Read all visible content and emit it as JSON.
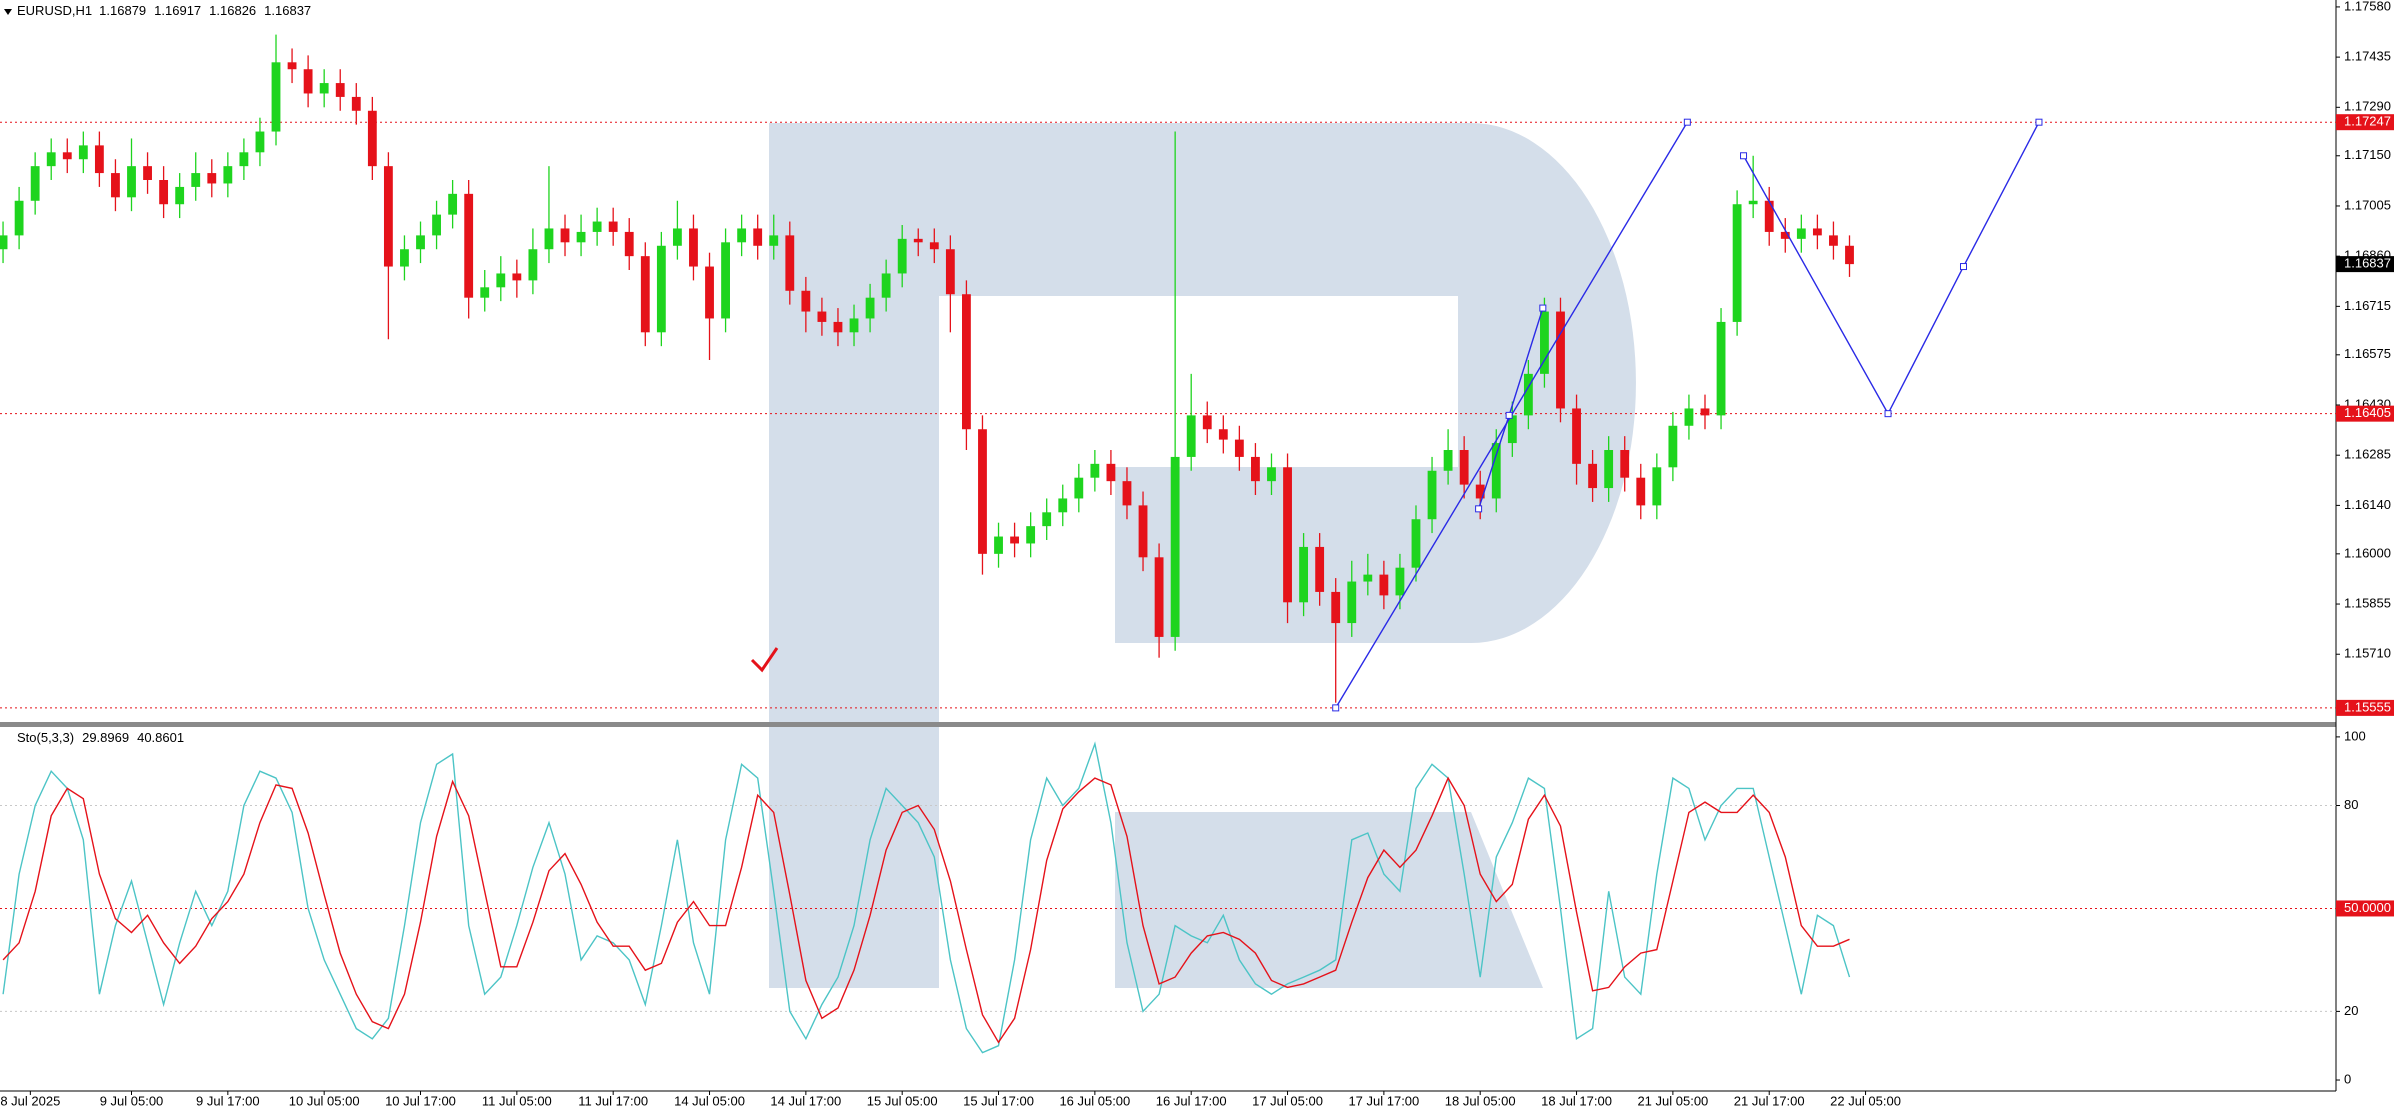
{
  "chart_data": [
    {
      "type": "candlestick",
      "title": "EURUSD,H1",
      "readout": [
        1.16879,
        1.16917,
        1.16826,
        1.16837
      ],
      "xlim": [
        -0.19,
        145.3
      ],
      "ylim": [
        1.1552,
        1.176
      ],
      "yticks": [
        {
          "value": 1.1758,
          "label": "1.17580"
        },
        {
          "value": 1.17435,
          "label": "1.17435"
        },
        {
          "value": 1.1729,
          "label": "1.17290"
        },
        {
          "value": 1.1715,
          "label": "1.17150"
        },
        {
          "value": 1.17005,
          "label": "1.17005"
        },
        {
          "value": 1.1686,
          "label": "1.16860"
        },
        {
          "value": 1.16715,
          "label": "1.16715"
        },
        {
          "value": 1.16575,
          "label": "1.16575"
        },
        {
          "value": 1.1643,
          "label": "1.16430"
        },
        {
          "value": 1.16285,
          "label": "1.16285"
        },
        {
          "value": 1.1614,
          "label": "1.16140"
        },
        {
          "value": 1.16,
          "label": "1.16000"
        },
        {
          "value": 1.15855,
          "label": "1.15855"
        },
        {
          "value": 1.1571,
          "label": "1.15710"
        }
      ],
      "up_color": "#1ed41e",
      "down_color": "#e5121a",
      "open": [
        1.1688,
        1.1692,
        1.1702,
        1.1712,
        1.1716,
        1.1714,
        1.1718,
        1.171,
        1.1703,
        1.1712,
        1.1708,
        1.1701,
        1.1706,
        1.171,
        1.1707,
        1.1712,
        1.1716,
        1.1722,
        1.1742,
        1.174,
        1.1733,
        1.1736,
        1.1732,
        1.1728,
        1.1712,
        1.1683,
        1.1688,
        1.1692,
        1.1698,
        1.1704,
        1.1674,
        1.1677,
        1.1681,
        1.1679,
        1.1688,
        1.1694,
        1.169,
        1.1693,
        1.1696,
        1.1693,
        1.1686,
        1.1664,
        1.1689,
        1.1694,
        1.1683,
        1.1668,
        1.169,
        1.1694,
        1.1689,
        1.1692,
        1.1676,
        1.167,
        1.1667,
        1.1664,
        1.1668,
        1.1674,
        1.1681,
        1.1691,
        1.169,
        1.1688,
        1.1675,
        1.1636,
        1.16,
        1.1605,
        1.1603,
        1.1608,
        1.1612,
        1.1616,
        1.1622,
        1.1626,
        1.1621,
        1.1614,
        1.1599,
        1.1576,
        1.1628,
        1.164,
        1.1636,
        1.1633,
        1.1628,
        1.1621,
        1.1625,
        1.1586,
        1.1602,
        1.1589,
        1.158,
        1.1592,
        1.1594,
        1.1588,
        1.1596,
        1.161,
        1.1624,
        1.163,
        1.162,
        1.1616,
        1.1632,
        1.164,
        1.1652,
        1.167,
        1.1642,
        1.1626,
        1.1619,
        1.163,
        1.1622,
        1.1614,
        1.1625,
        1.1637,
        1.1642,
        1.164,
        1.1667,
        1.1701,
        1.1702,
        1.1693,
        1.1691,
        1.1694,
        1.1692,
        1.1689
      ],
      "high": [
        1.1696,
        1.1706,
        1.1716,
        1.172,
        1.172,
        1.1722,
        1.1722,
        1.1714,
        1.172,
        1.1716,
        1.1712,
        1.171,
        1.1716,
        1.1714,
        1.1716,
        1.172,
        1.1726,
        1.175,
        1.1746,
        1.1744,
        1.174,
        1.174,
        1.1736,
        1.1732,
        1.1716,
        1.1692,
        1.1696,
        1.1702,
        1.1708,
        1.1708,
        1.1682,
        1.1686,
        1.1685,
        1.1694,
        1.1712,
        1.1698,
        1.1698,
        1.17,
        1.17,
        1.1697,
        1.169,
        1.1693,
        1.1702,
        1.1698,
        1.1687,
        1.1694,
        1.1698,
        1.1698,
        1.1698,
        1.1696,
        1.168,
        1.1674,
        1.1671,
        1.1672,
        1.1678,
        1.1685,
        1.1695,
        1.1694,
        1.1694,
        1.1692,
        1.1679,
        1.164,
        1.1609,
        1.1609,
        1.1612,
        1.1616,
        1.162,
        1.1626,
        1.163,
        1.163,
        1.1625,
        1.1618,
        1.1603,
        1.1722,
        1.1652,
        1.1644,
        1.164,
        1.1637,
        1.1632,
        1.1629,
        1.1629,
        1.1606,
        1.1606,
        1.1593,
        1.1598,
        1.16,
        1.1598,
        1.16,
        1.1614,
        1.1628,
        1.1636,
        1.1634,
        1.1624,
        1.1636,
        1.1644,
        1.1656,
        1.1674,
        1.1674,
        1.1646,
        1.163,
        1.1634,
        1.1634,
        1.1626,
        1.1629,
        1.1641,
        1.1646,
        1.1646,
        1.1671,
        1.1705,
        1.1715,
        1.1706,
        1.1697,
        1.1698,
        1.1698,
        1.1696,
        1.1692
      ],
      "low": [
        1.1684,
        1.1688,
        1.1698,
        1.1708,
        1.171,
        1.171,
        1.1706,
        1.1699,
        1.1699,
        1.1704,
        1.1697,
        1.1697,
        1.1702,
        1.1703,
        1.1703,
        1.1708,
        1.1712,
        1.1718,
        1.1736,
        1.1729,
        1.1729,
        1.1728,
        1.1724,
        1.1708,
        1.1662,
        1.1679,
        1.1684,
        1.1688,
        1.1694,
        1.1668,
        1.167,
        1.1673,
        1.1674,
        1.1675,
        1.1684,
        1.1686,
        1.1686,
        1.1689,
        1.1689,
        1.1682,
        1.166,
        1.166,
        1.1685,
        1.1679,
        1.1656,
        1.1664,
        1.1686,
        1.1685,
        1.1685,
        1.1672,
        1.1664,
        1.1663,
        1.166,
        1.166,
        1.1664,
        1.167,
        1.1677,
        1.1686,
        1.1684,
        1.1664,
        1.163,
        1.1594,
        1.1596,
        1.1599,
        1.1599,
        1.1604,
        1.1608,
        1.1612,
        1.1618,
        1.1617,
        1.161,
        1.1595,
        1.157,
        1.1572,
        1.1624,
        1.1632,
        1.1629,
        1.1624,
        1.1617,
        1.1617,
        1.158,
        1.1582,
        1.1585,
        1.1557,
        1.1576,
        1.1588,
        1.1584,
        1.1584,
        1.1592,
        1.1606,
        1.162,
        1.1616,
        1.161,
        1.1612,
        1.1628,
        1.1636,
        1.1648,
        1.1638,
        1.162,
        1.1615,
        1.1615,
        1.1618,
        1.161,
        1.161,
        1.1621,
        1.1633,
        1.1636,
        1.1636,
        1.1663,
        1.1697,
        1.1689,
        1.1687,
        1.1687,
        1.1688,
        1.1685,
        1.168
      ],
      "close": [
        1.1692,
        1.1702,
        1.1712,
        1.1716,
        1.1714,
        1.1718,
        1.171,
        1.1703,
        1.1712,
        1.1708,
        1.1701,
        1.1706,
        1.171,
        1.1707,
        1.1712,
        1.1716,
        1.1722,
        1.1742,
        1.174,
        1.1733,
        1.1736,
        1.1732,
        1.1728,
        1.1712,
        1.1683,
        1.1688,
        1.1692,
        1.1698,
        1.1704,
        1.1674,
        1.1677,
        1.1681,
        1.1679,
        1.1688,
        1.1694,
        1.169,
        1.1693,
        1.1696,
        1.1693,
        1.1686,
        1.1664,
        1.1689,
        1.1694,
        1.1683,
        1.1668,
        1.169,
        1.1694,
        1.1689,
        1.1692,
        1.1676,
        1.167,
        1.1667,
        1.1664,
        1.1668,
        1.1674,
        1.1681,
        1.1691,
        1.169,
        1.1688,
        1.1675,
        1.1636,
        1.16,
        1.1605,
        1.1603,
        1.1608,
        1.1612,
        1.1616,
        1.1622,
        1.1626,
        1.1621,
        1.1614,
        1.1599,
        1.1576,
        1.1628,
        1.164,
        1.1636,
        1.1633,
        1.1628,
        1.1621,
        1.1625,
        1.1586,
        1.1602,
        1.1589,
        1.158,
        1.1592,
        1.1594,
        1.1588,
        1.1596,
        1.161,
        1.1624,
        1.163,
        1.162,
        1.1616,
        1.1632,
        1.164,
        1.1652,
        1.167,
        1.1642,
        1.1626,
        1.1619,
        1.163,
        1.1622,
        1.1614,
        1.1625,
        1.1637,
        1.1642,
        1.164,
        1.1667,
        1.1701,
        1.1702,
        1.1693,
        1.1691,
        1.1694,
        1.1692,
        1.1689,
        1.16837
      ],
      "levels": [
        {
          "value": 1.17247,
          "label": "1.17247"
        },
        {
          "value": 1.16405,
          "label": "1.16405"
        },
        {
          "value": 1.15555,
          "label": "1.15555"
        }
      ],
      "level_color": "#e5121a",
      "current_price": {
        "value": 1.16837,
        "label": "1.16837"
      },
      "drawings_color": "#2a2ae6",
      "drawings": [
        {
          "x": [
            83,
            104.9
          ],
          "y": [
            1.15555,
            1.17247
          ]
        },
        {
          "x": [
            91.9,
            93.8,
            95.9
          ],
          "y": [
            1.1613,
            1.164,
            1.1671
          ]
        },
        {
          "x": [
            108.4,
            117.4,
            122.1,
            126.8
          ],
          "y": [
            1.1715,
            1.16405,
            1.1683,
            1.17247
          ]
        }
      ]
    },
    {
      "type": "stochastic",
      "title": "Sto(5,3,3)",
      "readout": [
        29.8969,
        40.8601
      ],
      "xlim": [
        -0.19,
        145.3
      ],
      "ylim": [
        -3.2,
        102.3
      ],
      "yticks": [
        0,
        20,
        80,
        100
      ],
      "xticks": [
        {
          "value": 1.7,
          "label": "8 Jul 2025"
        },
        {
          "value": 8,
          "label": "9 Jul 05:00"
        },
        {
          "value": 14,
          "label": "9 Jul 17:00"
        },
        {
          "value": 20,
          "label": "10 Jul 05:00"
        },
        {
          "value": 26,
          "label": "10 Jul 17:00"
        },
        {
          "value": 32,
          "label": "11 Jul 05:00"
        },
        {
          "value": 38,
          "label": "11 Jul 17:00"
        },
        {
          "value": 44,
          "label": "14 Jul 05:00"
        },
        {
          "value": 50,
          "label": "14 Jul 17:00"
        },
        {
          "value": 56,
          "label": "15 Jul 05:00"
        },
        {
          "value": 62,
          "label": "15 Jul 17:00"
        },
        {
          "value": 68,
          "label": "16 Jul 05:00"
        },
        {
          "value": 74,
          "label": "16 Jul 17:00"
        },
        {
          "value": 80,
          "label": "17 Jul 05:00"
        },
        {
          "value": 86,
          "label": "17 Jul 17:00"
        },
        {
          "value": 92,
          "label": "18 Jul 05:00"
        },
        {
          "value": 98,
          "label": "18 Jul 17:00"
        },
        {
          "value": 104,
          "label": "21 Jul 05:00"
        },
        {
          "value": 110,
          "label": "21 Jul 17:00"
        },
        {
          "value": 116,
          "label": "22 Jul 05:00"
        }
      ],
      "levels": [
        20,
        {
          "value": 50,
          "label": "50.0000"
        },
        80
      ],
      "level_color": "#e5121a",
      "series": [
        {
          "name": "Main",
          "color": "#4cc4c6",
          "values": [
            25,
            60,
            80,
            90,
            85,
            70,
            25,
            45,
            58,
            40,
            22,
            40,
            55,
            45,
            55,
            80,
            90,
            88,
            78,
            50,
            35,
            25,
            15,
            12,
            18,
            45,
            75,
            92,
            95,
            45,
            25,
            30,
            45,
            62,
            75,
            60,
            35,
            42,
            40,
            35,
            22,
            45,
            70,
            40,
            25,
            70,
            92,
            88,
            55,
            20,
            12,
            22,
            30,
            45,
            70,
            85,
            80,
            75,
            65,
            35,
            15,
            8,
            10,
            35,
            70,
            88,
            80,
            85,
            98,
            75,
            40,
            20,
            25,
            45,
            42,
            40,
            48,
            35,
            28,
            25,
            28,
            30,
            32,
            35,
            70,
            72,
            60,
            55,
            85,
            92,
            88,
            60,
            30,
            65,
            75,
            88,
            85,
            50,
            12,
            15,
            55,
            30,
            25,
            60,
            88,
            85,
            70,
            80,
            85,
            85,
            65,
            45,
            25,
            48,
            45,
            30
          ]
        },
        {
          "name": "Signal",
          "color": "#e5121a",
          "values": [
            35,
            40,
            55,
            77,
            85,
            82,
            60,
            47,
            43,
            48,
            40,
            34,
            39,
            47,
            52,
            60,
            75,
            86,
            85,
            72,
            54,
            37,
            25,
            17,
            15,
            25,
            46,
            71,
            87,
            77,
            55,
            33,
            33,
            46,
            61,
            66,
            57,
            46,
            39,
            39,
            32,
            34,
            46,
            52,
            45,
            45,
            62,
            83,
            78,
            54,
            29,
            18,
            21,
            32,
            48,
            67,
            78,
            80,
            73,
            58,
            38,
            19,
            11,
            18,
            38,
            64,
            79,
            84,
            88,
            86,
            71,
            45,
            28,
            30,
            37,
            42,
            43,
            41,
            37,
            29,
            27,
            28,
            30,
            32,
            46,
            59,
            67,
            62,
            67,
            77,
            88,
            80,
            60,
            52,
            57,
            76,
            83,
            74,
            49,
            26,
            27,
            33,
            37,
            38,
            58,
            78,
            81,
            78,
            78,
            83,
            78,
            65,
            45,
            39,
            39,
            41
          ]
        }
      ]
    }
  ]
}
